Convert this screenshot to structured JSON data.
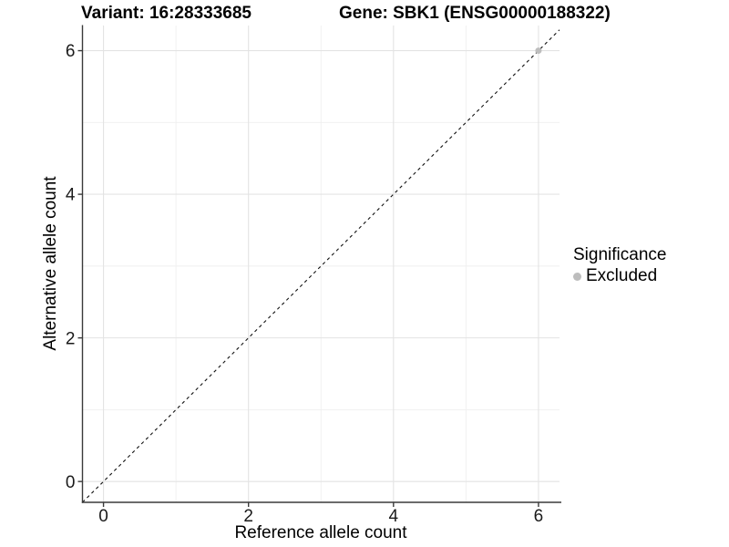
{
  "chart_data": {
    "type": "scatter",
    "titles": {
      "left": "Variant: 16:28333685",
      "right": "Gene: SBK1 (ENSG00000188322)"
    },
    "xlabel": "Reference allele count",
    "ylabel": "Alternative allele count",
    "xlim": [
      -0.29,
      6.29
    ],
    "ylim": [
      -0.29,
      6.35
    ],
    "x_ticks": [
      0,
      2,
      4,
      6
    ],
    "y_ticks": [
      0,
      2,
      4,
      6
    ],
    "x_minor_ticks": [
      1,
      3,
      5
    ],
    "y_minor_ticks": [
      1,
      3,
      5
    ],
    "grid": "major+minor on white panel",
    "reference_line": {
      "type": "identity",
      "equation": "y = x",
      "style": "dashed",
      "color": "#111111"
    },
    "series": [
      {
        "name": "Excluded",
        "marker": "circle",
        "color": "#bdbdbd",
        "points": [
          {
            "x": 6,
            "y": 6
          }
        ]
      }
    ],
    "legend": {
      "title": "Significance",
      "position": "right",
      "items": [
        {
          "label": "Excluded",
          "color": "#bdbdbd"
        }
      ]
    },
    "colors": {
      "grid_major": "#e3e3e3",
      "grid_minor": "#efefef",
      "axis_line": "#3a3a3a",
      "tick_text": "#1a1a1a",
      "point": "#bdbdbd",
      "dashed_line": "#111111",
      "panel_background": "#ffffff"
    }
  }
}
